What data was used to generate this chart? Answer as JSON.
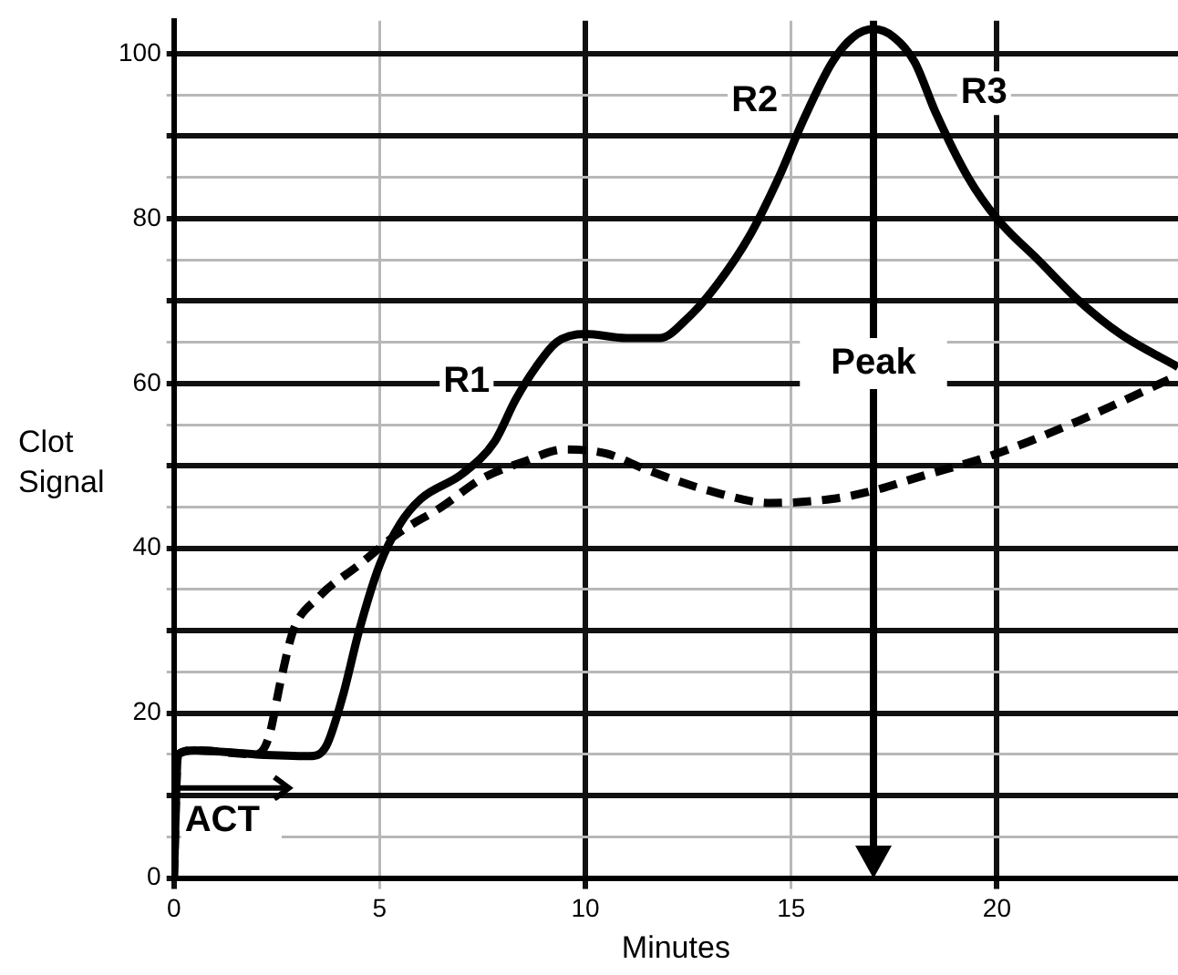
{
  "chart_data": {
    "type": "line",
    "xlabel": "Minutes",
    "ylabel": "Clot Signal",
    "xlim": [
      0,
      24.4
    ],
    "ylim": [
      0,
      104
    ],
    "xticks": [
      0,
      5,
      10,
      15,
      20
    ],
    "yticks": [
      0,
      {
        "value": 5,
        "label": null
      },
      {
        "value": 10,
        "label": null
      },
      {
        "value": 15,
        "label": null
      },
      20,
      {
        "value": 25,
        "label": null
      },
      {
        "value": 30,
        "label": null
      },
      {
        "value": 35,
        "label": null
      },
      40,
      {
        "value": 45,
        "label": null
      },
      {
        "value": 50,
        "label": null
      },
      {
        "value": 55,
        "label": null
      },
      60,
      {
        "value": 65,
        "label": null
      },
      {
        "value": 70,
        "label": null
      },
      {
        "value": 75,
        "label": null
      },
      80,
      {
        "value": 85,
        "label": null
      },
      {
        "value": 90,
        "label": null
      },
      {
        "value": 95,
        "label": null
      },
      100
    ],
    "grid": true,
    "legend": false,
    "marker": "none",
    "series": [
      {
        "color": "#000000",
        "line_style": "solid",
        "x": [
          0,
          0.1,
          0.5,
          2,
          3.3,
          3.7,
          4.1,
          4.5,
          5,
          5.5,
          6,
          7,
          7.8,
          8.3,
          8.8,
          9.3,
          10,
          11,
          11.8,
          12.5,
          13.2,
          14,
          14.7,
          15.3,
          16,
          16.5,
          17,
          17.5,
          18,
          18.5,
          19.3,
          20,
          21,
          22,
          23,
          24.4
        ],
        "values": [
          0,
          15,
          15.5,
          15,
          14.8,
          16,
          22,
          30,
          38,
          43,
          46,
          49,
          53,
          58,
          62,
          65,
          66,
          65.5,
          65.5,
          68,
          72,
          78,
          85,
          92,
          99,
          102,
          103,
          102,
          99,
          93,
          85,
          80,
          75,
          70,
          66,
          62
        ]
      },
      {
        "color": "#000000",
        "line_style": "dashed",
        "x": [
          0,
          0.1,
          0.5,
          2,
          2.3,
          2.6,
          2.9,
          3.5,
          4.5,
          5.5,
          6.5,
          7.5,
          8.5,
          9.5,
          10.5,
          11.5,
          13,
          14.5,
          16,
          17,
          18,
          20,
          22,
          24.4
        ],
        "values": [
          0,
          15,
          15.5,
          15,
          17,
          24,
          30,
          34,
          38,
          42,
          45,
          48.5,
          50.5,
          52,
          51.5,
          49.5,
          47,
          45.5,
          46,
          47,
          48.5,
          51.5,
          55.5,
          61
        ]
      }
    ],
    "ref_lines": [
      {
        "axis": "x",
        "value": 17,
        "label": "Peak"
      }
    ],
    "annotations": [
      "ACT",
      {
        "text": "R1",
        "x": 8.3,
        "y": 58
      },
      {
        "text": "R2",
        "x": 15.3,
        "y": 92
      },
      {
        "text": "R3",
        "x": 18.5,
        "y": 93
      }
    ]
  }
}
